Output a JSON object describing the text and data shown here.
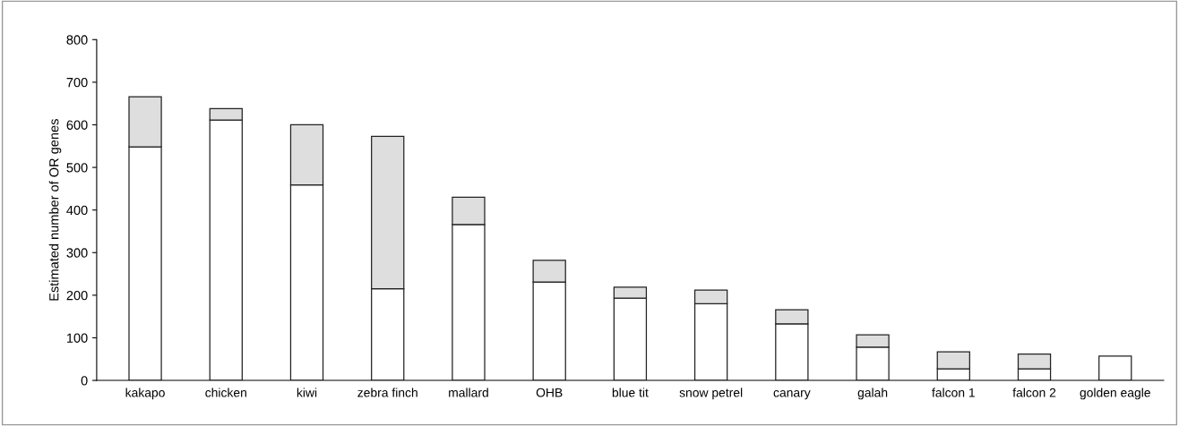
{
  "chart_data": {
    "type": "bar",
    "stacked": true,
    "ylabel": "Estimated number of OR genes",
    "categories": [
      "kakapo",
      "chicken",
      "kiwi",
      "zebra finch",
      "mallard",
      "OHB",
      "blue tit",
      "snow petrel",
      "canary",
      "galah",
      "falcon 1",
      "falcon 2",
      "golden eagle"
    ],
    "series": [
      {
        "color": "#ffffff",
        "values": [
          548,
          611,
          459,
          215,
          366,
          231,
          193,
          180,
          133,
          78,
          27,
          27,
          57
        ]
      },
      {
        "color": "#dedede",
        "values": [
          118,
          27,
          141,
          358,
          64,
          51,
          26,
          32,
          33,
          29,
          40,
          35,
          null
        ]
      }
    ],
    "ylim": [
      0,
      800
    ],
    "yticks": [
      0,
      100,
      200,
      300,
      400,
      500,
      600,
      700,
      800
    ],
    "grid": false,
    "legend": false
  }
}
